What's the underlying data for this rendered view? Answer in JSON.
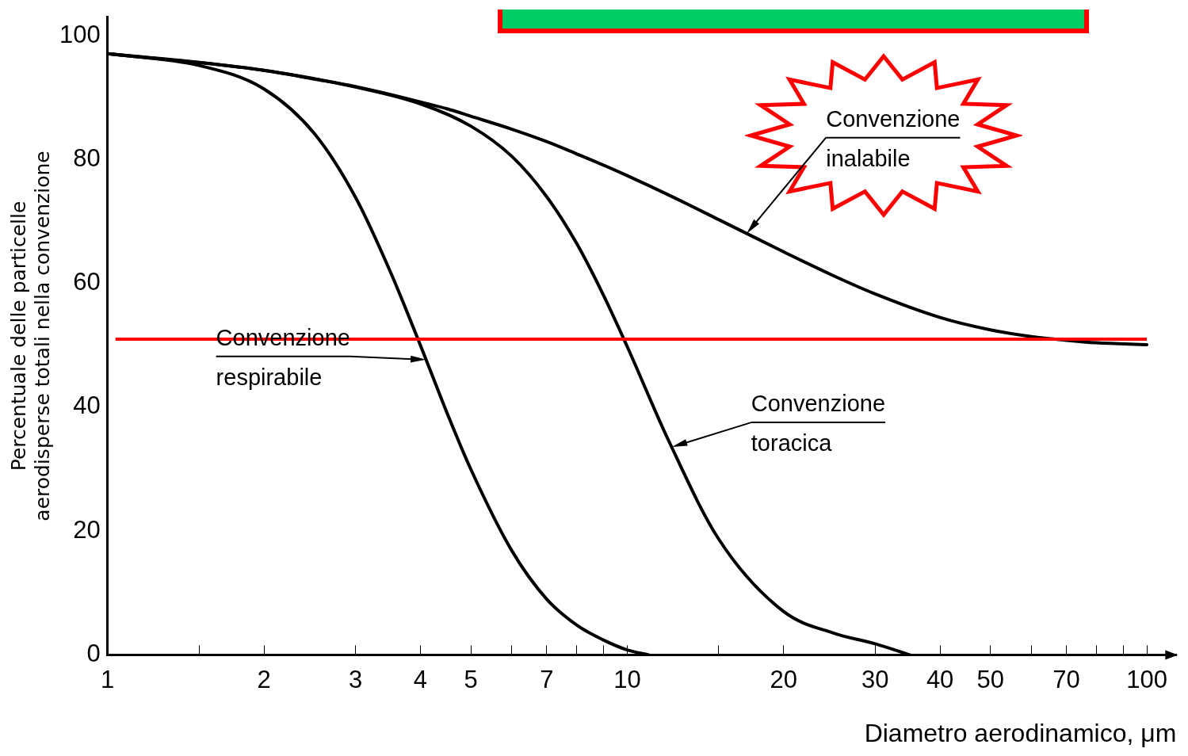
{
  "chart_data": {
    "type": "line",
    "xlabel": "Diametro aerodinamico, μm",
    "ylabel": "Percentuale delle particelle aerodisperse totali nella convenzione",
    "log": "x",
    "xlim": [
      1,
      114
    ],
    "xticks": [
      1,
      {
        "value": 1.5,
        "label": null
      },
      2,
      3,
      4,
      5,
      {
        "value": 6,
        "label": null
      },
      7,
      {
        "value": 8,
        "label": null
      },
      {
        "value": 9,
        "label": null
      },
      10,
      {
        "value": 15,
        "label": null
      },
      20,
      30,
      40,
      50,
      {
        "value": 60,
        "label": null
      },
      70,
      {
        "value": 80,
        "label": null
      },
      {
        "value": 90,
        "label": null
      },
      100
    ],
    "ylim": [
      0,
      103
    ],
    "yticks": [
      0,
      20,
      40,
      60,
      80,
      100
    ],
    "grid": false,
    "legend": false,
    "marker": "none",
    "line_style": "solid",
    "series": [
      {
        "color": "#000000",
        "x": [
          1,
          1.5,
          2,
          2.5,
          3,
          3.5,
          4,
          4.5,
          5,
          6,
          7,
          8,
          9,
          10,
          12,
          15,
          20,
          25,
          30,
          40,
          50,
          60,
          70,
          80,
          100
        ],
        "values": [
          97.1,
          95.7,
          94.4,
          93,
          91.8,
          90.5,
          89.3,
          88.2,
          87,
          84.9,
          82.9,
          80.9,
          79.1,
          77.4,
          74.3,
          70.3,
          65.1,
          61.2,
          58.3,
          54.5,
          52.5,
          51.4,
          50.8,
          50.4,
          50.1
        ]
      },
      {
        "color": "#000000",
        "x": [
          1,
          1.5,
          2,
          2.5,
          3,
          3.5,
          4,
          4.5,
          5,
          6,
          7,
          8,
          9,
          10,
          11
        ],
        "values": [
          97.1,
          95.2,
          91.4,
          84.2,
          73.9,
          61.9,
          50,
          39.1,
          30,
          16.8,
          9,
          4.8,
          2.4,
          0.8,
          0
        ]
      },
      {
        "color": "#000000",
        "x": [
          1,
          2,
          3,
          4,
          5,
          6,
          7,
          8,
          9,
          10,
          12,
          15,
          20,
          25,
          30,
          35
        ],
        "values": [
          97.1,
          94.4,
          91.7,
          89,
          85.4,
          80.5,
          74,
          66.4,
          58.1,
          49.8,
          34.7,
          18.7,
          7,
          3.5,
          1.8,
          0
        ]
      }
    ],
    "ref_lines": [
      {
        "axis": "y",
        "value": 51,
        "color": "#ff0000",
        "line_style": "solid"
      }
    ],
    "annotations": [
      "Convenzione inalabile",
      "Convenzione respirabile",
      "Convenzione toracica"
    ]
  }
}
